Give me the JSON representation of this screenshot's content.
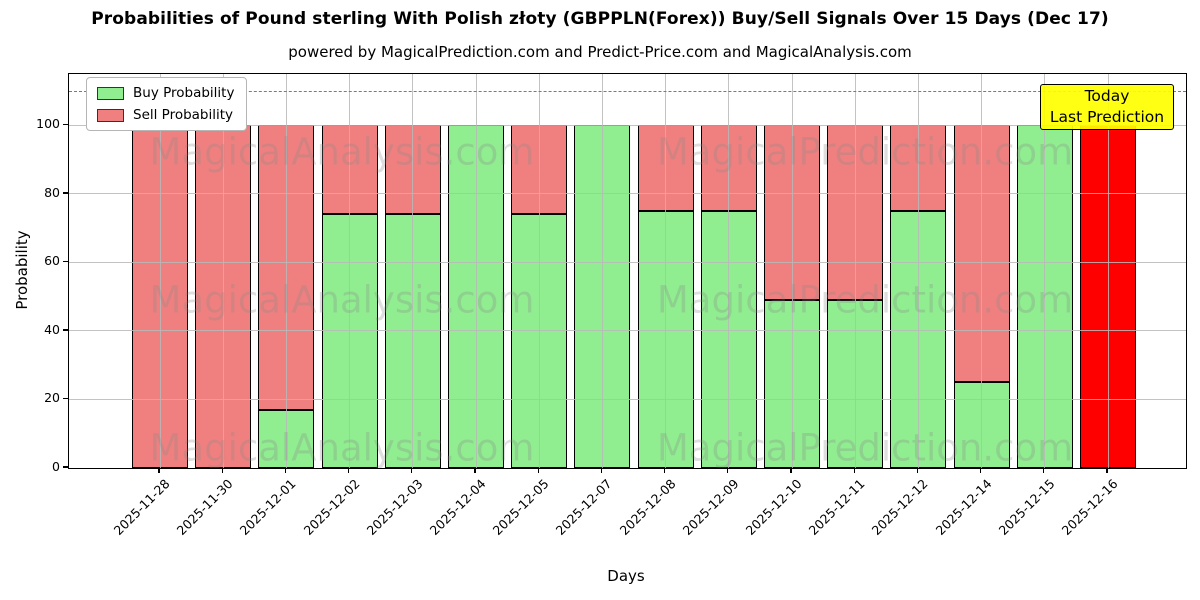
{
  "chart_data": {
    "type": "bar",
    "stacked": true,
    "title": "Probabilities of Pound sterling With Polish złoty (GBPPLN(Forex)) Buy/Sell Signals Over 15 Days (Dec 17)",
    "subtitle": "powered by MagicalPrediction.com and Predict-Price.com and MagicalAnalysis.com",
    "categories": [
      "2025-11-28",
      "2025-11-30",
      "2025-12-01",
      "2025-12-02",
      "2025-12-03",
      "2025-12-04",
      "2025-12-05",
      "2025-12-07",
      "2025-12-08",
      "2025-12-09",
      "2025-12-10",
      "2025-12-11",
      "2025-12-12",
      "2025-12-14",
      "2025-12-15",
      "2025-12-16"
    ],
    "series": [
      {
        "name": "Buy Probability",
        "color": "#90EE90",
        "values": [
          0,
          0,
          17,
          74,
          74,
          100,
          74,
          100,
          75,
          75,
          49,
          49,
          75,
          25,
          100,
          0
        ]
      },
      {
        "name": "Sell Probability",
        "color": "#F08080",
        "values": [
          100,
          100,
          83,
          26,
          26,
          0,
          26,
          0,
          25,
          25,
          51,
          51,
          25,
          75,
          0,
          100
        ]
      }
    ],
    "xlabel": "Days",
    "ylabel": "Probability",
    "yticks": [
      0,
      20,
      40,
      60,
      80,
      100
    ],
    "ylim": [
      0,
      115
    ],
    "grid": true,
    "gridline_color": "#b9b9b9",
    "threshold_line_y": 110,
    "legend_position": "upper left",
    "today_index": 15,
    "today_color": "#FF0000",
    "annotation": {
      "lines": [
        "Today",
        "Last Prediction"
      ],
      "bg_color": "#FFFF00"
    },
    "watermarks": {
      "texts": [
        "MagicalAnalysis.com",
        "MagicalPrediction.com"
      ],
      "color": "#8a8a8a"
    }
  }
}
